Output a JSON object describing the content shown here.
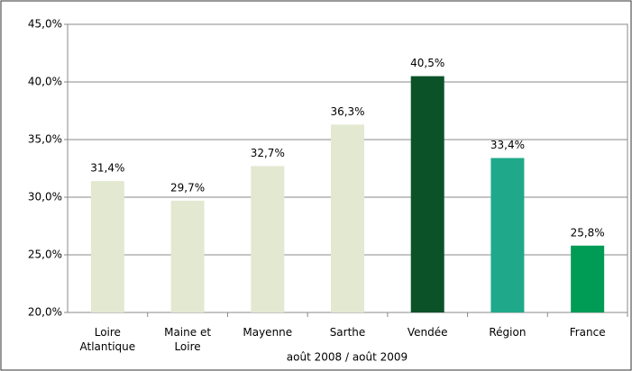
{
  "chart_data": {
    "type": "bar",
    "categories": [
      "Loire Atlantique",
      "Maine et Loire",
      "Mayenne",
      "Sarthe",
      "Vendée",
      "Région",
      "France"
    ],
    "values": [
      31.4,
      29.7,
      32.7,
      36.3,
      40.5,
      33.4,
      25.8
    ],
    "value_labels": [
      "31,4%",
      "29,7%",
      "32,7%",
      "36,3%",
      "40,5%",
      "33,4%",
      "25,8%"
    ],
    "colors": [
      "#e3e8d1",
      "#e3e8d1",
      "#e3e8d1",
      "#e3e8d1",
      "#0b5229",
      "#1fa98a",
      "#009b55"
    ],
    "x_label": "août 2008 / août 2009",
    "ylim": [
      20,
      45
    ],
    "yticks": [
      {
        "value": 20,
        "label": "20,0%"
      },
      {
        "value": 25,
        "label": "25,0%"
      },
      {
        "value": 30,
        "label": "30,0%"
      },
      {
        "value": 35,
        "label": "35,0%"
      },
      {
        "value": 40,
        "label": "40,0%"
      },
      {
        "value": 45,
        "label": "45,0%"
      }
    ],
    "grid": true
  }
}
